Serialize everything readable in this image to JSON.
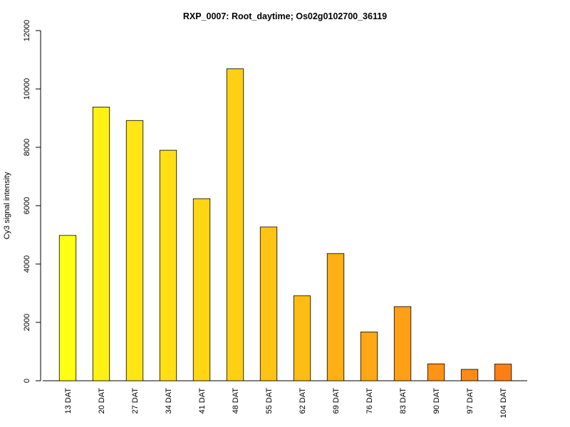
{
  "chart_data": {
    "type": "bar",
    "title": "RXP_0007: Root_daytime; Os02g0102700_36119",
    "xlabel": "",
    "ylabel": "Cy3 signal intensity",
    "ylim": [
      0,
      12000
    ],
    "yticks": [
      "0",
      "2000",
      "4000",
      "6000",
      "8000",
      "10000",
      "12000"
    ],
    "categories": [
      "13 DAT",
      "20 DAT",
      "27 DAT",
      "34 DAT",
      "41 DAT",
      "48 DAT",
      "55 DAT",
      "62 DAT",
      "69 DAT",
      "76 DAT",
      "83 DAT",
      "90 DAT",
      "97 DAT",
      "104 DAT"
    ],
    "values": [
      4980,
      9380,
      8920,
      7900,
      6240,
      10690,
      5270,
      2910,
      4360,
      1670,
      2540,
      580,
      390,
      570
    ],
    "colors": [
      "#ffff14",
      "#fff114",
      "#ffe614",
      "#ffdf14",
      "#ffd614",
      "#ffcf14",
      "#ffc314",
      "#ffbd14",
      "#ffb014",
      "#ffa714",
      "#ff9f14",
      "#ff9314",
      "#ff8a14",
      "#ff7f14"
    ],
    "grid": false,
    "legend": "none"
  }
}
